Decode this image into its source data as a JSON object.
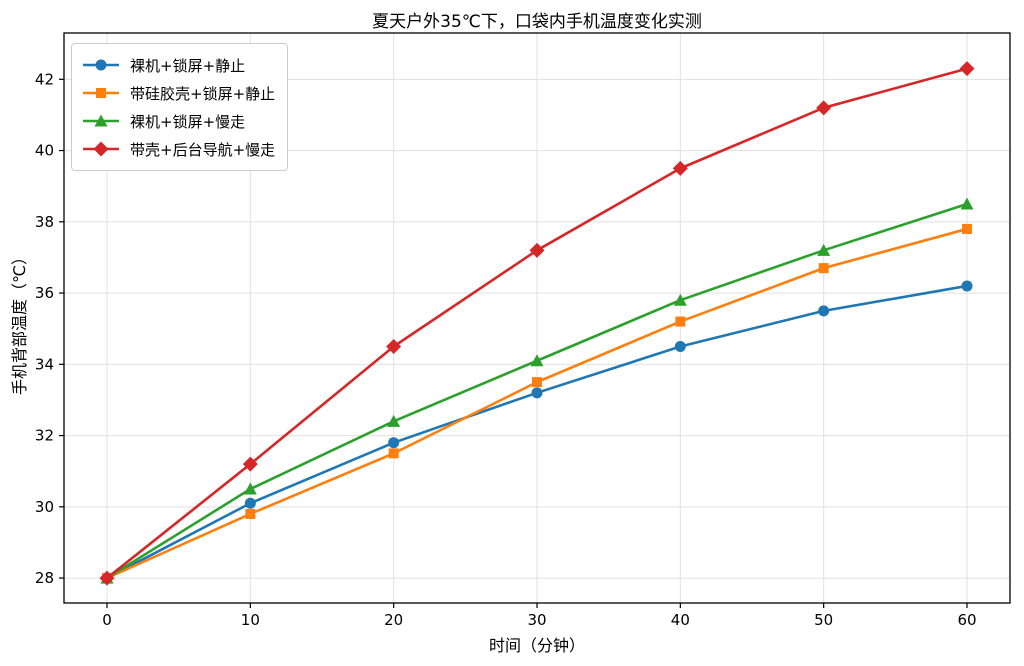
{
  "chart_data": {
    "type": "line",
    "title": "夏天户外35℃下，口袋内手机温度变化实测",
    "xlabel": "时间（分钟）",
    "ylabel": "手机背部温度（℃）",
    "x": [
      0,
      10,
      20,
      30,
      40,
      50,
      60
    ],
    "x_ticks": [
      "0",
      "10",
      "20",
      "30",
      "40",
      "50",
      "60"
    ],
    "y_ticks": [
      "28",
      "30",
      "32",
      "34",
      "36",
      "38",
      "40",
      "42"
    ],
    "y_tick_values": [
      28,
      30,
      32,
      34,
      36,
      38,
      40,
      42
    ],
    "xlim": [
      -3,
      63
    ],
    "ylim": [
      27.3,
      43.3
    ],
    "grid": true,
    "legend_position": "upper-left",
    "series": [
      {
        "name": "裸机+锁屏+静止",
        "marker": "circle",
        "color": "#1f77b4",
        "values": [
          28.0,
          30.1,
          31.8,
          33.2,
          34.5,
          35.5,
          36.2
        ]
      },
      {
        "name": "带硅胶壳+锁屏+静止",
        "marker": "square",
        "color": "#ff7f0e",
        "values": [
          28.0,
          29.8,
          31.5,
          33.5,
          35.2,
          36.7,
          37.8
        ]
      },
      {
        "name": "裸机+锁屏+慢走",
        "marker": "triangle",
        "color": "#2ca02c",
        "values": [
          28.0,
          30.5,
          32.4,
          34.1,
          35.8,
          37.2,
          38.5
        ]
      },
      {
        "name": "带壳+后台导航+慢走",
        "marker": "diamond",
        "color": "#d62728",
        "values": [
          28.0,
          31.2,
          34.5,
          37.2,
          39.5,
          41.2,
          42.3
        ]
      }
    ]
  }
}
